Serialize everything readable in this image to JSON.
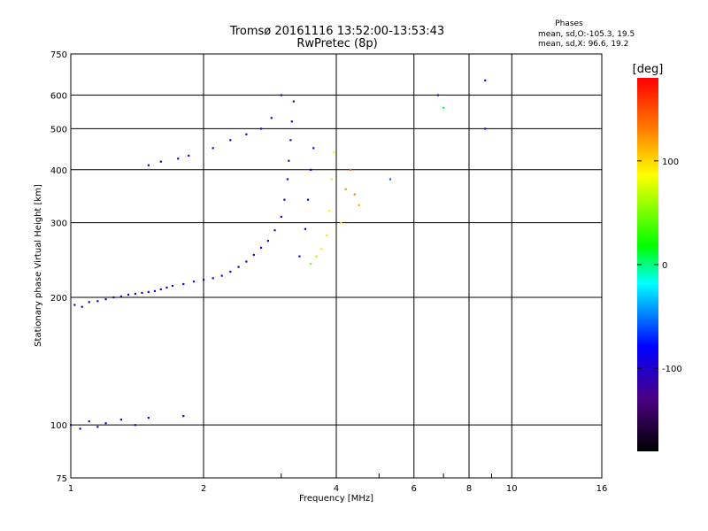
{
  "header": {
    "title_line1": "Tromsø 20161116 13:52:00-13:53:43",
    "title_line2": "RwPretec (8p)"
  },
  "phases_box": {
    "title": "Phases",
    "line_o": "mean, sd,O:-105.3, 19.5",
    "line_x": "mean, sd,X:  96.6, 19.2"
  },
  "colorbar": {
    "unit": "[deg]",
    "tick_labels": [
      "100",
      "0",
      "-100"
    ],
    "tick_values": [
      100,
      0,
      -100
    ],
    "range": [
      -180,
      180
    ],
    "colors": {
      "top": "#ff0000",
      "mid_yellow": "#ffff00",
      "green": "#00ff00",
      "cyan": "#00ffff",
      "blue": "#0000ff",
      "bottom": "#000000"
    }
  },
  "chart_data": {
    "type": "scatter",
    "xlabel": "Frequency [MHz]",
    "ylabel": "Stationary phase Virtual Height [km]",
    "x_scale": "log",
    "y_scale": "log",
    "xlim": [
      1,
      16
    ],
    "ylim": [
      75,
      750
    ],
    "x_ticks": [
      1,
      2,
      4,
      6,
      8,
      10,
      16
    ],
    "x_tick_labels": [
      "1",
      "2",
      "4",
      "6",
      "8",
      "10",
      "16"
    ],
    "y_ticks": [
      75,
      100,
      200,
      300,
      400,
      500,
      600,
      750
    ],
    "y_tick_labels": [
      "75",
      "100",
      "200",
      "300",
      "400",
      "500",
      "600",
      "750"
    ],
    "grid": true,
    "series": [
      {
        "color_by": "phase_deg",
        "points": [
          [
            1.02,
            192,
            -110
          ],
          [
            1.06,
            190,
            -105
          ],
          [
            1.1,
            195,
            -115
          ],
          [
            1.15,
            196,
            -100
          ],
          [
            1.2,
            198,
            -110
          ],
          [
            1.25,
            200,
            -108
          ],
          [
            1.3,
            201,
            -112
          ],
          [
            1.35,
            203,
            -104
          ],
          [
            1.4,
            204,
            -110
          ],
          [
            1.45,
            205,
            -100
          ],
          [
            1.5,
            206,
            -115
          ],
          [
            1.55,
            207,
            -106
          ],
          [
            1.6,
            209,
            -102
          ],
          [
            1.65,
            211,
            -110
          ],
          [
            1.7,
            213,
            -108
          ],
          [
            1.8,
            215,
            -105
          ],
          [
            1.9,
            218,
            -110
          ],
          [
            2.0,
            220,
            -104
          ],
          [
            2.1,
            222,
            -100
          ],
          [
            2.2,
            225,
            -108
          ],
          [
            2.3,
            230,
            -105
          ],
          [
            2.4,
            236,
            -100
          ],
          [
            2.5,
            243,
            -106
          ],
          [
            2.6,
            252,
            -102
          ],
          [
            2.7,
            262,
            -95
          ],
          [
            2.8,
            272,
            -98
          ],
          [
            2.9,
            288,
            -100
          ],
          [
            3.0,
            310,
            -102
          ],
          [
            3.05,
            340,
            -108
          ],
          [
            3.1,
            380,
            -105
          ],
          [
            3.12,
            420,
            -110
          ],
          [
            3.15,
            470,
            -108
          ],
          [
            3.17,
            520,
            -105
          ],
          [
            3.2,
            580,
            -110
          ],
          [
            1.5,
            410,
            -108
          ],
          [
            1.6,
            418,
            -105
          ],
          [
            1.75,
            425,
            -110
          ],
          [
            1.85,
            432,
            -104
          ],
          [
            2.1,
            450,
            -100
          ],
          [
            2.3,
            470,
            -108
          ],
          [
            2.5,
            485,
            -102
          ],
          [
            2.7,
            500,
            -106
          ],
          [
            2.85,
            530,
            -110
          ],
          [
            3.0,
            600,
            -105
          ],
          [
            3.3,
            250,
            -90
          ],
          [
            3.4,
            290,
            -80
          ],
          [
            3.45,
            340,
            -75
          ],
          [
            3.5,
            400,
            -85
          ],
          [
            3.55,
            450,
            -80
          ],
          [
            3.5,
            240,
            60
          ],
          [
            3.6,
            250,
            75
          ],
          [
            3.7,
            260,
            85
          ],
          [
            3.8,
            280,
            90
          ],
          [
            3.85,
            320,
            95
          ],
          [
            3.9,
            380,
            90
          ],
          [
            3.95,
            440,
            95
          ],
          [
            4.1,
            300,
            110
          ],
          [
            4.2,
            360,
            125
          ],
          [
            4.3,
            400,
            140
          ],
          [
            4.4,
            350,
            130
          ],
          [
            4.5,
            330,
            120
          ],
          [
            1.0,
            100,
            -110
          ],
          [
            1.05,
            98,
            -105
          ],
          [
            1.1,
            102,
            -112
          ],
          [
            1.15,
            99,
            -108
          ],
          [
            1.2,
            101,
            -100
          ],
          [
            1.3,
            103,
            -106
          ],
          [
            1.4,
            100,
            -110
          ],
          [
            1.5,
            104,
            -104
          ],
          [
            1.8,
            105,
            -100
          ],
          [
            5.3,
            380,
            -50
          ],
          [
            6.8,
            600,
            -110
          ],
          [
            7.0,
            560,
            20
          ],
          [
            8.7,
            650,
            -110
          ],
          [
            8.7,
            500,
            -110
          ]
        ]
      }
    ]
  }
}
